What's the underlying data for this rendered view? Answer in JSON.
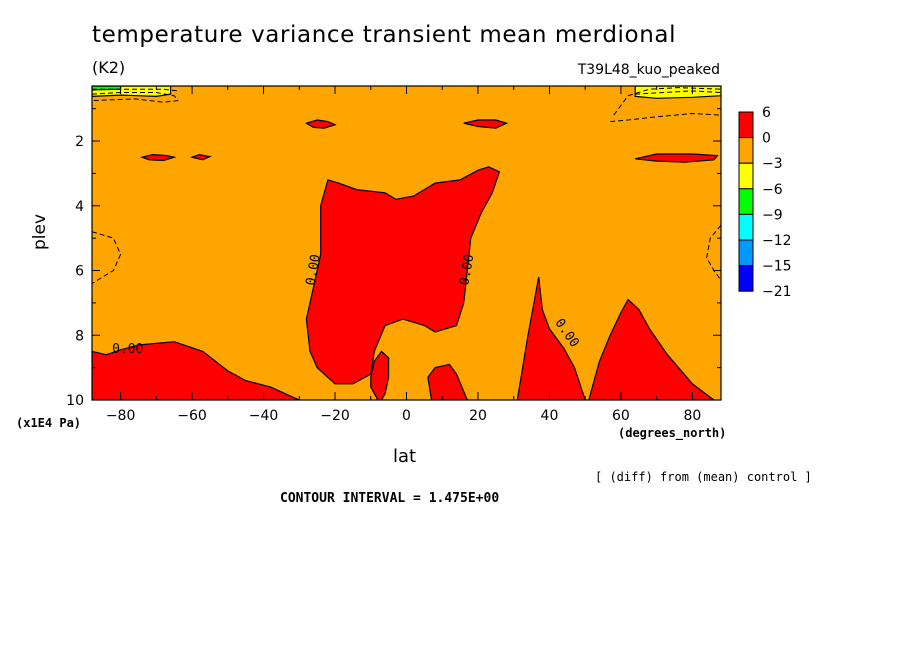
{
  "chart_data": {
    "type": "heatmap",
    "title": "temperature variance transient mean merdional",
    "units": "(K2)",
    "run_label": "T39L48_kuo_peaked",
    "xlabel": "lat",
    "ylabel": "plev",
    "x_units": "(degrees_north)",
    "y_units": "(x1E4 Pa)",
    "x_ticks": [
      -80,
      -60,
      -40,
      -20,
      0,
      20,
      40,
      60,
      80
    ],
    "y_ticks": [
      2,
      4,
      6,
      8,
      10
    ],
    "xlim": [
      -88,
      88
    ],
    "ylim": [
      0.3,
      10
    ],
    "y_inverted": true,
    "contour_interval_label": "CONTOUR INTERVAL = 1.475E+00",
    "note": "[ (diff) from (mean) control ]",
    "contour_labels": [
      "0.00",
      "0.00",
      "0.00",
      "0.00"
    ],
    "colorbar": {
      "levels": [
        6,
        0,
        -3,
        -6,
        -9,
        -12,
        -15,
        -21
      ],
      "colors": [
        "#ff0000",
        "#ffa500",
        "#ffff00",
        "#00ff00",
        "#00ffff",
        "#0099ff",
        "#0000ff"
      ]
    },
    "background_color": "#ffa500",
    "regions": [
      {
        "name": "positive-south-surface",
        "color": "#ff0000",
        "points": [
          [
            -88,
            8.5
          ],
          [
            -84,
            8.6
          ],
          [
            -80,
            8.45
          ],
          [
            -75,
            8.3
          ],
          [
            -65,
            8.2
          ],
          [
            -57,
            8.5
          ],
          [
            -50,
            9.1
          ],
          [
            -45,
            9.4
          ],
          [
            -38,
            9.6
          ],
          [
            -32,
            9.9
          ],
          [
            -30,
            10
          ],
          [
            -88,
            10
          ]
        ]
      },
      {
        "name": "positive-tropical-column",
        "color": "#ff0000",
        "points": [
          [
            -24,
            4
          ],
          [
            -22,
            3.2
          ],
          [
            -19,
            3.3
          ],
          [
            -14,
            3.5
          ],
          [
            -6,
            3.6
          ],
          [
            -3,
            3.8
          ],
          [
            2,
            3.7
          ],
          [
            8,
            3.3
          ],
          [
            15,
            3.2
          ],
          [
            20,
            2.9
          ],
          [
            23,
            2.8
          ],
          [
            26,
            2.95
          ],
          [
            24,
            3.6
          ],
          [
            21,
            4.2
          ],
          [
            18,
            5.0
          ],
          [
            17,
            6.0
          ],
          [
            16,
            7.0
          ],
          [
            14,
            7.7
          ],
          [
            11,
            7.8
          ],
          [
            8,
            7.9
          ],
          [
            5,
            7.7
          ],
          [
            -1,
            7.5
          ],
          [
            -6,
            7.7
          ],
          [
            -9,
            8.5
          ],
          [
            -10,
            9.2
          ],
          [
            -15,
            9.5
          ],
          [
            -20,
            9.5
          ],
          [
            -25,
            9.0
          ],
          [
            -27,
            8.5
          ],
          [
            -28,
            7.5
          ],
          [
            -26,
            6.5
          ],
          [
            -24,
            5.5
          ]
        ]
      },
      {
        "name": "positive-low-south",
        "color": "#ff0000",
        "points": [
          [
            -8,
            10
          ],
          [
            -10,
            9.6
          ],
          [
            -10,
            9.3
          ],
          [
            -9,
            8.8
          ],
          [
            -7,
            8.5
          ],
          [
            -5,
            8.7
          ],
          [
            -5,
            9.3
          ],
          [
            -6,
            9.8
          ],
          [
            -7,
            10
          ]
        ]
      },
      {
        "name": "positive-low-mid",
        "color": "#ff0000",
        "points": [
          [
            7,
            10
          ],
          [
            6,
            9.3
          ],
          [
            8,
            9.0
          ],
          [
            12,
            8.9
          ],
          [
            14,
            9.2
          ],
          [
            17,
            10
          ]
        ]
      },
      {
        "name": "positive-spike-40",
        "color": "#ff0000",
        "points": [
          [
            31,
            10
          ],
          [
            34,
            8.0
          ],
          [
            37,
            6.2
          ],
          [
            38,
            7.2
          ],
          [
            40,
            7.8
          ],
          [
            44,
            8.4
          ],
          [
            47,
            9.0
          ],
          [
            50,
            10
          ]
        ]
      },
      {
        "name": "positive-60n",
        "color": "#ff0000",
        "points": [
          [
            51,
            10
          ],
          [
            54,
            8.8
          ],
          [
            57,
            8.0
          ],
          [
            60,
            7.3
          ],
          [
            62,
            6.9
          ],
          [
            65,
            7.2
          ],
          [
            68,
            7.8
          ],
          [
            73,
            8.6
          ],
          [
            80,
            9.5
          ],
          [
            86,
            10
          ]
        ]
      },
      {
        "name": "blob-upper-1",
        "color": "#ff0000",
        "points": [
          [
            -28,
            1.45
          ],
          [
            -25,
            1.35
          ],
          [
            -22,
            1.4
          ],
          [
            -20,
            1.5
          ],
          [
            -23,
            1.6
          ],
          [
            -26,
            1.58
          ]
        ]
      },
      {
        "name": "blob-upper-2",
        "color": "#ff0000",
        "points": [
          [
            16,
            1.45
          ],
          [
            20,
            1.35
          ],
          [
            25,
            1.35
          ],
          [
            28,
            1.45
          ],
          [
            25,
            1.6
          ],
          [
            20,
            1.55
          ]
        ]
      },
      {
        "name": "blob-250-1",
        "color": "#ff0000",
        "points": [
          [
            -74,
            2.5
          ],
          [
            -71,
            2.42
          ],
          [
            -67,
            2.45
          ],
          [
            -65,
            2.5
          ],
          [
            -68,
            2.6
          ],
          [
            -72,
            2.58
          ]
        ]
      },
      {
        "name": "blob-250-2",
        "color": "#ff0000",
        "points": [
          [
            -60,
            2.5
          ],
          [
            -58,
            2.42
          ],
          [
            -55,
            2.48
          ],
          [
            -57,
            2.58
          ]
        ]
      },
      {
        "name": "blob-250-3",
        "color": "#ff0000",
        "points": [
          [
            64,
            2.55
          ],
          [
            70,
            2.4
          ],
          [
            80,
            2.4
          ],
          [
            87,
            2.45
          ],
          [
            86,
            2.58
          ],
          [
            78,
            2.65
          ],
          [
            70,
            2.62
          ]
        ]
      },
      {
        "name": "yellow-sp-top",
        "color": "#ffff00",
        "points": [
          [
            -88,
            0.3
          ],
          [
            -66,
            0.3
          ],
          [
            -66,
            0.55
          ],
          [
            -70,
            0.62
          ],
          [
            -80,
            0.58
          ],
          [
            -88,
            0.62
          ]
        ]
      },
      {
        "name": "green-sp-top",
        "color": "#00ff00",
        "points": [
          [
            -88,
            0.3
          ],
          [
            -80,
            0.3
          ],
          [
            -80,
            0.4
          ],
          [
            -88,
            0.42
          ]
        ]
      },
      {
        "name": "yellow-np-top",
        "color": "#ffff00",
        "points": [
          [
            64,
            0.3
          ],
          [
            88,
            0.3
          ],
          [
            88,
            0.6
          ],
          [
            80,
            0.65
          ],
          [
            70,
            0.68
          ],
          [
            64,
            0.62
          ]
        ]
      }
    ],
    "dashed_contours": [
      [
        [
          -88,
          0.55
        ],
        [
          -80,
          0.5
        ],
        [
          -70,
          0.5
        ],
        [
          -65,
          0.6
        ],
        [
          -64,
          0.75
        ],
        [
          -68,
          0.8
        ],
        [
          -76,
          0.7
        ],
        [
          -88,
          0.75
        ]
      ],
      [
        [
          -88,
          0.4
        ],
        [
          -78,
          0.4
        ],
        [
          -68,
          0.4
        ],
        [
          -64,
          0.45
        ]
      ],
      [
        [
          58,
          1.2
        ],
        [
          62,
          0.6
        ],
        [
          68,
          0.4
        ],
        [
          76,
          0.35
        ],
        [
          84,
          0.38
        ],
        [
          88,
          0.4
        ]
      ],
      [
        [
          57,
          1.4
        ],
        [
          62,
          1.35
        ],
        [
          70,
          1.25
        ],
        [
          80,
          1.15
        ],
        [
          88,
          1.2
        ]
      ],
      [
        [
          64,
          0.55
        ],
        [
          72,
          0.5
        ],
        [
          80,
          0.45
        ],
        [
          88,
          0.5
        ]
      ],
      [
        [
          -88,
          4.8
        ],
        [
          -82,
          5.0
        ],
        [
          -80,
          5.5
        ],
        [
          -82,
          6.0
        ],
        [
          -88,
          6.4
        ]
      ],
      [
        [
          88,
          4.6
        ],
        [
          85,
          5.0
        ],
        [
          84,
          5.6
        ],
        [
          86,
          6.0
        ],
        [
          88,
          6.3
        ]
      ]
    ],
    "label_positions": [
      {
        "text_index": 0,
        "lon": -78,
        "lev": 8.55
      },
      {
        "text_index": 1,
        "lon": -25,
        "lev": 6.0
      },
      {
        "text_index": 2,
        "lon": 18,
        "lev": 6.0
      },
      {
        "text_index": 3,
        "lon": 44,
        "lev": 8.0
      }
    ]
  }
}
